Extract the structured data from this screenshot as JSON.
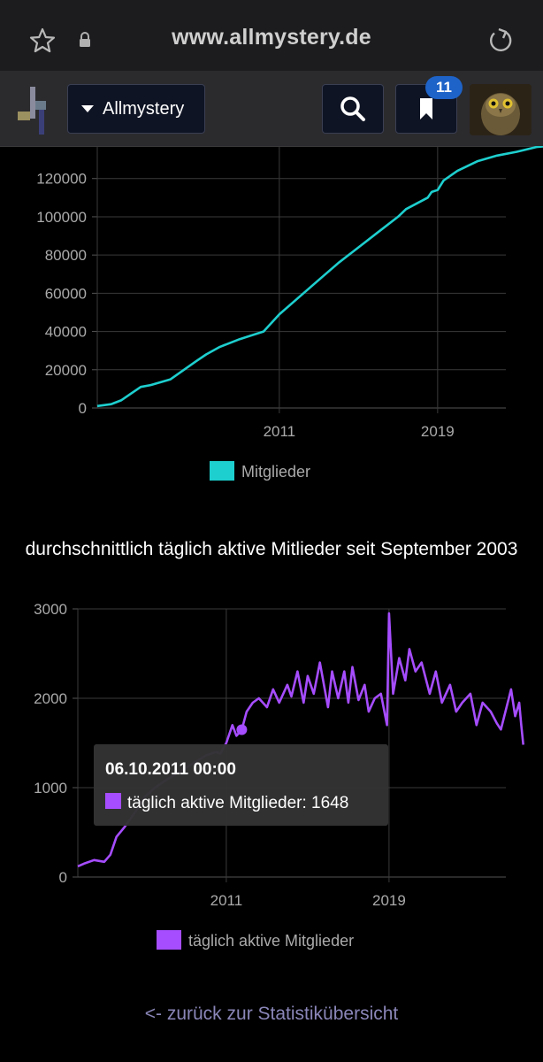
{
  "browser": {
    "url": "www.allmystery.de",
    "icons": [
      "star-icon",
      "lock-icon",
      "reload-icon"
    ]
  },
  "header": {
    "forum_label": "Allmystery",
    "bookmark_count": "11",
    "icons": [
      "logo-icon",
      "caret-down-icon",
      "search-icon",
      "bookmark-icon",
      "avatar"
    ]
  },
  "chart_data": [
    {
      "type": "line",
      "title": "",
      "series": [
        {
          "name": "Mitglieder",
          "color": "#1ecfcf",
          "x": [
            2001.8,
            2002.5,
            2003.0,
            2003.5,
            2004.0,
            2004.5,
            2005.5,
            2006.8,
            2007.3,
            2008.0,
            2009.0,
            2010.2,
            2011.0,
            2012.0,
            2013.0,
            2014.0,
            2015.0,
            2016.0,
            2017.0,
            2017.4,
            2018.5,
            2018.7,
            2019.0,
            2019.3,
            2020.0,
            2021.0,
            2022.0,
            2023.0,
            2024.0,
            2024.5
          ],
          "y": [
            1000,
            2000,
            4000,
            7500,
            11000,
            12000,
            15000,
            24500,
            28000,
            32000,
            36000,
            40000,
            49000,
            58000,
            67000,
            76000,
            84000,
            92000,
            100000,
            104000,
            110000,
            113000,
            114000,
            119000,
            124000,
            129000,
            132000,
            134000,
            136500,
            137000
          ]
        }
      ],
      "x_ticks": [
        "2011",
        "2019"
      ],
      "y_ticks": [
        "0",
        "20000",
        "40000",
        "60000",
        "80000",
        "100000",
        "120000"
      ],
      "ylim": [
        0,
        137000
      ],
      "legend": "bottom-center"
    },
    {
      "type": "line",
      "title": "durchschnittlich täglich aktive Mitlieder seit September 2003",
      "series": [
        {
          "name": "täglich aktive Mitglieder",
          "color": "#a64dff",
          "x": [
            2003.7,
            2004.0,
            2004.5,
            2005.0,
            2005.3,
            2005.6,
            2006.0,
            2006.5,
            2007.0,
            2007.5,
            2008.0,
            2008.5,
            2009.0,
            2009.5,
            2010.0,
            2010.5,
            2010.7,
            2011.0,
            2011.3,
            2011.5,
            2011.76,
            2012.0,
            2012.3,
            2012.6,
            2013.0,
            2013.3,
            2013.6,
            2014.0,
            2014.2,
            2014.5,
            2014.8,
            2015.0,
            2015.3,
            2015.6,
            2016.0,
            2016.2,
            2016.5,
            2016.8,
            2017.0,
            2017.2,
            2017.5,
            2017.8,
            2018.0,
            2018.3,
            2018.6,
            2018.9,
            2019.0,
            2019.2,
            2019.5,
            2019.8,
            2020.0,
            2020.3,
            2020.6,
            2021.0,
            2021.3,
            2021.6,
            2022.0,
            2022.3,
            2022.6,
            2023.0,
            2023.3,
            2023.6,
            2024.0,
            2024.3,
            2024.5,
            2025.0,
            2025.2,
            2025.4,
            2025.5,
            2025.6
          ],
          "y": [
            120,
            150,
            190,
            170,
            250,
            450,
            560,
            720,
            900,
            1000,
            1080,
            1150,
            1220,
            1290,
            1360,
            1400,
            1380,
            1500,
            1700,
            1580,
            1648,
            1850,
            1950,
            2000,
            1900,
            2100,
            1950,
            2150,
            2020,
            2300,
            1950,
            2250,
            2050,
            2400,
            1900,
            2300,
            2000,
            2300,
            1950,
            2350,
            1980,
            2150,
            1850,
            2000,
            2050,
            1700,
            2950,
            2050,
            2450,
            2200,
            2550,
            2300,
            2400,
            2050,
            2300,
            1950,
            2150,
            1850,
            1950,
            2050,
            1700,
            1950,
            1850,
            1720,
            1650,
            2100,
            1800,
            1950,
            1700,
            1480
          ]
        }
      ],
      "x_ticks": [
        "2011",
        "2019"
      ],
      "y_ticks": [
        "0",
        "1000",
        "2000",
        "3000"
      ],
      "ylim": [
        0,
        3000
      ],
      "legend": "bottom-center",
      "tooltip": {
        "date": "06.10.2011 00:00",
        "label": "täglich aktive Mitglieder: 1648",
        "x": 2011.76,
        "y": 1648
      }
    }
  ],
  "footer": {
    "back_link": "<- zurück zur Statistikübersicht"
  }
}
